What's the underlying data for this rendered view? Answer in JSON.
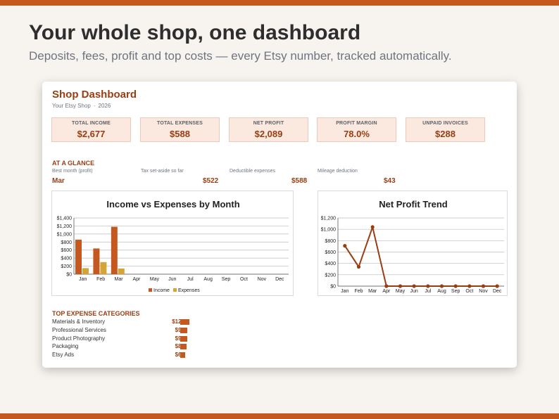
{
  "headline": "Your whole shop, one dashboard",
  "subline": "Deposits, fees, profit and top costs — every Etsy number, tracked automatically.",
  "dashboard": {
    "title": "Shop Dashboard",
    "shop_name": "Your Etsy Shop",
    "separator": "·",
    "year": "2026",
    "kpis": [
      {
        "label": "TOTAL INCOME",
        "value": "$2,677"
      },
      {
        "label": "TOTAL EXPENSES",
        "value": "$588"
      },
      {
        "label": "NET PROFIT",
        "value": "$2,089"
      },
      {
        "label": "PROFIT MARGIN",
        "value": "78.0%"
      },
      {
        "label": "UNPAID INVOICES",
        "value": "$288"
      }
    ],
    "glance_title": "AT A GLANCE",
    "glance": [
      {
        "label": "Best month (profit)",
        "value": "Mar"
      },
      {
        "label": "Tax set-aside so far",
        "value": "$522"
      },
      {
        "label": "Deductible expenses",
        "value": "$588"
      },
      {
        "label": "Mileage deduction",
        "value": "$43"
      }
    ],
    "expense_title": "TOP EXPENSE CATEGORIES",
    "expenses": [
      {
        "name": "Materials & Inventory",
        "value": "$122",
        "amount": 122
      },
      {
        "name": "Professional Services",
        "value": "$95",
        "amount": 95
      },
      {
        "name": "Product Photography",
        "value": "$90",
        "amount": 90
      },
      {
        "name": "Packaging",
        "value": "$85",
        "amount": 85
      },
      {
        "name": "Etsy Ads",
        "value": "$62",
        "amount": 62
      }
    ]
  },
  "colors": {
    "accent": "#c4581e",
    "income": "#c4581e",
    "expenses": "#d4a437",
    "profit_line": "#9a3d12"
  },
  "chart_data": [
    {
      "type": "bar",
      "title": "Income vs Expenses by Month",
      "categories": [
        "Jan",
        "Feb",
        "Mar",
        "Apr",
        "May",
        "Jun",
        "Jul",
        "Aug",
        "Sep",
        "Oct",
        "Nov",
        "Dec"
      ],
      "series": [
        {
          "name": "Income",
          "values": [
            860,
            640,
            1180,
            0,
            0,
            0,
            0,
            0,
            0,
            0,
            0,
            0
          ]
        },
        {
          "name": "Expenses",
          "values": [
            150,
            300,
            140,
            0,
            0,
            0,
            0,
            0,
            0,
            0,
            0,
            0
          ]
        }
      ],
      "ylim": [
        0,
        1400
      ],
      "yticks": [
        0,
        200,
        400,
        600,
        800,
        1000,
        1200,
        1400
      ],
      "ytick_labels": [
        "$0",
        "$200",
        "$400",
        "$600",
        "$800",
        "$1,000",
        "$1,200",
        "$1,400"
      ],
      "legend": "bottom",
      "grid": true
    },
    {
      "type": "line",
      "title": "Net Profit Trend",
      "categories": [
        "Jan",
        "Feb",
        "Mar",
        "Apr",
        "May",
        "Jun",
        "Jul",
        "Aug",
        "Sep",
        "Oct",
        "Nov",
        "Dec"
      ],
      "series": [
        {
          "values": [
            710,
            340,
            1040,
            0,
            0,
            0,
            0,
            0,
            0,
            0,
            0,
            0
          ]
        }
      ],
      "ylim": [
        0,
        1200
      ],
      "yticks": [
        0,
        200,
        400,
        600,
        800,
        1000,
        1200
      ],
      "ytick_labels": [
        "$0",
        "$200",
        "$400",
        "$600",
        "$800",
        "$1,000",
        "$1,200"
      ],
      "grid": true
    }
  ]
}
